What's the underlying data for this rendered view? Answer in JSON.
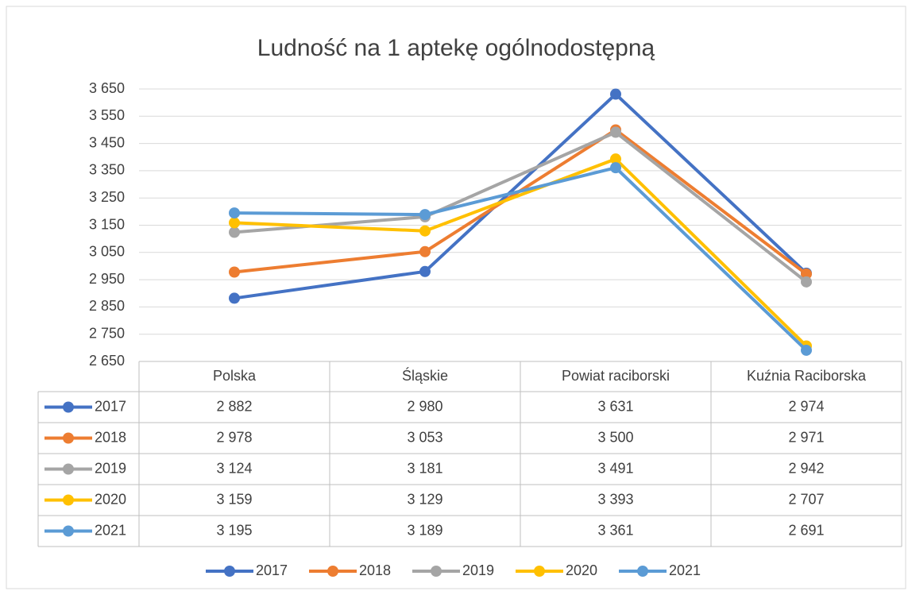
{
  "chart_data": {
    "type": "line",
    "title": "Ludność na 1 aptekę ogólnodostępną",
    "categories": [
      "Polska",
      "Śląskie",
      "Powiat raciborski",
      "Kuźnia Raciborska"
    ],
    "series": [
      {
        "name": "2017",
        "color": "#4472c4",
        "values": [
          2882,
          2980,
          3631,
          2974
        ],
        "value_labels": [
          "2 882",
          "2 980",
          "3 631",
          "2 974"
        ]
      },
      {
        "name": "2018",
        "color": "#ed7d31",
        "values": [
          2978,
          3053,
          3500,
          2971
        ],
        "value_labels": [
          "2 978",
          "3 053",
          "3 500",
          "2 971"
        ]
      },
      {
        "name": "2019",
        "color": "#a5a5a5",
        "values": [
          3124,
          3181,
          3491,
          2942
        ],
        "value_labels": [
          "3 124",
          "3 181",
          "3 491",
          "2 942"
        ]
      },
      {
        "name": "2020",
        "color": "#ffc000",
        "values": [
          3159,
          3129,
          3393,
          2707
        ],
        "value_labels": [
          "3 159",
          "3 129",
          "3 393",
          "2 707"
        ]
      },
      {
        "name": "2021",
        "color": "#5b9bd5",
        "values": [
          3195,
          3189,
          3361,
          2691
        ],
        "value_labels": [
          "3 195",
          "3 189",
          "3 361",
          "2 691"
        ]
      }
    ],
    "ylim": [
      2650,
      3650
    ],
    "yticks": [
      {
        "value": 2650,
        "label": "2 650"
      },
      {
        "value": 2750,
        "label": "2 750"
      },
      {
        "value": 2850,
        "label": "2 850"
      },
      {
        "value": 2950,
        "label": "2 950"
      },
      {
        "value": 3050,
        "label": "3 050"
      },
      {
        "value": 3150,
        "label": "3 150"
      },
      {
        "value": 3250,
        "label": "3 250"
      },
      {
        "value": 3350,
        "label": "3 350"
      },
      {
        "value": 3450,
        "label": "3 450"
      },
      {
        "value": 3550,
        "label": "3 550"
      },
      {
        "value": 3650,
        "label": "3 650"
      }
    ],
    "grid": true,
    "legend": "bottom",
    "data_table": true
  }
}
